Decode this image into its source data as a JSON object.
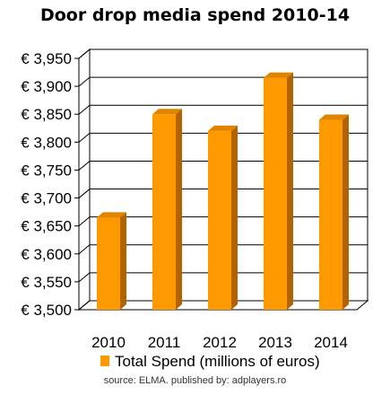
{
  "chart_data": {
    "type": "bar",
    "title": "Door drop media spend 2010-14",
    "categories": [
      "2010",
      "2011",
      "2012",
      "2013",
      "2014"
    ],
    "series": [
      {
        "name": "Total Spend (millions of euros)",
        "values": [
          3665,
          3850,
          3820,
          3915,
          3840
        ]
      }
    ],
    "ylim": [
      3500,
      3950
    ],
    "yticks": [
      3500,
      3550,
      3600,
      3650,
      3700,
      3750,
      3800,
      3850,
      3900,
      3950
    ],
    "ytick_prefix": "€ ",
    "xlabel": "",
    "ylabel": "",
    "grid": true,
    "legend_position": "bottom",
    "bar_style": "3d",
    "colors": {
      "bar_front": "#FF9900",
      "bar_top": "#E08400",
      "bar_side": "#B36200",
      "grid": "#000000",
      "wall": "#ffffff"
    }
  },
  "source_note": "source: ELMA. published by: adplayers.ro"
}
